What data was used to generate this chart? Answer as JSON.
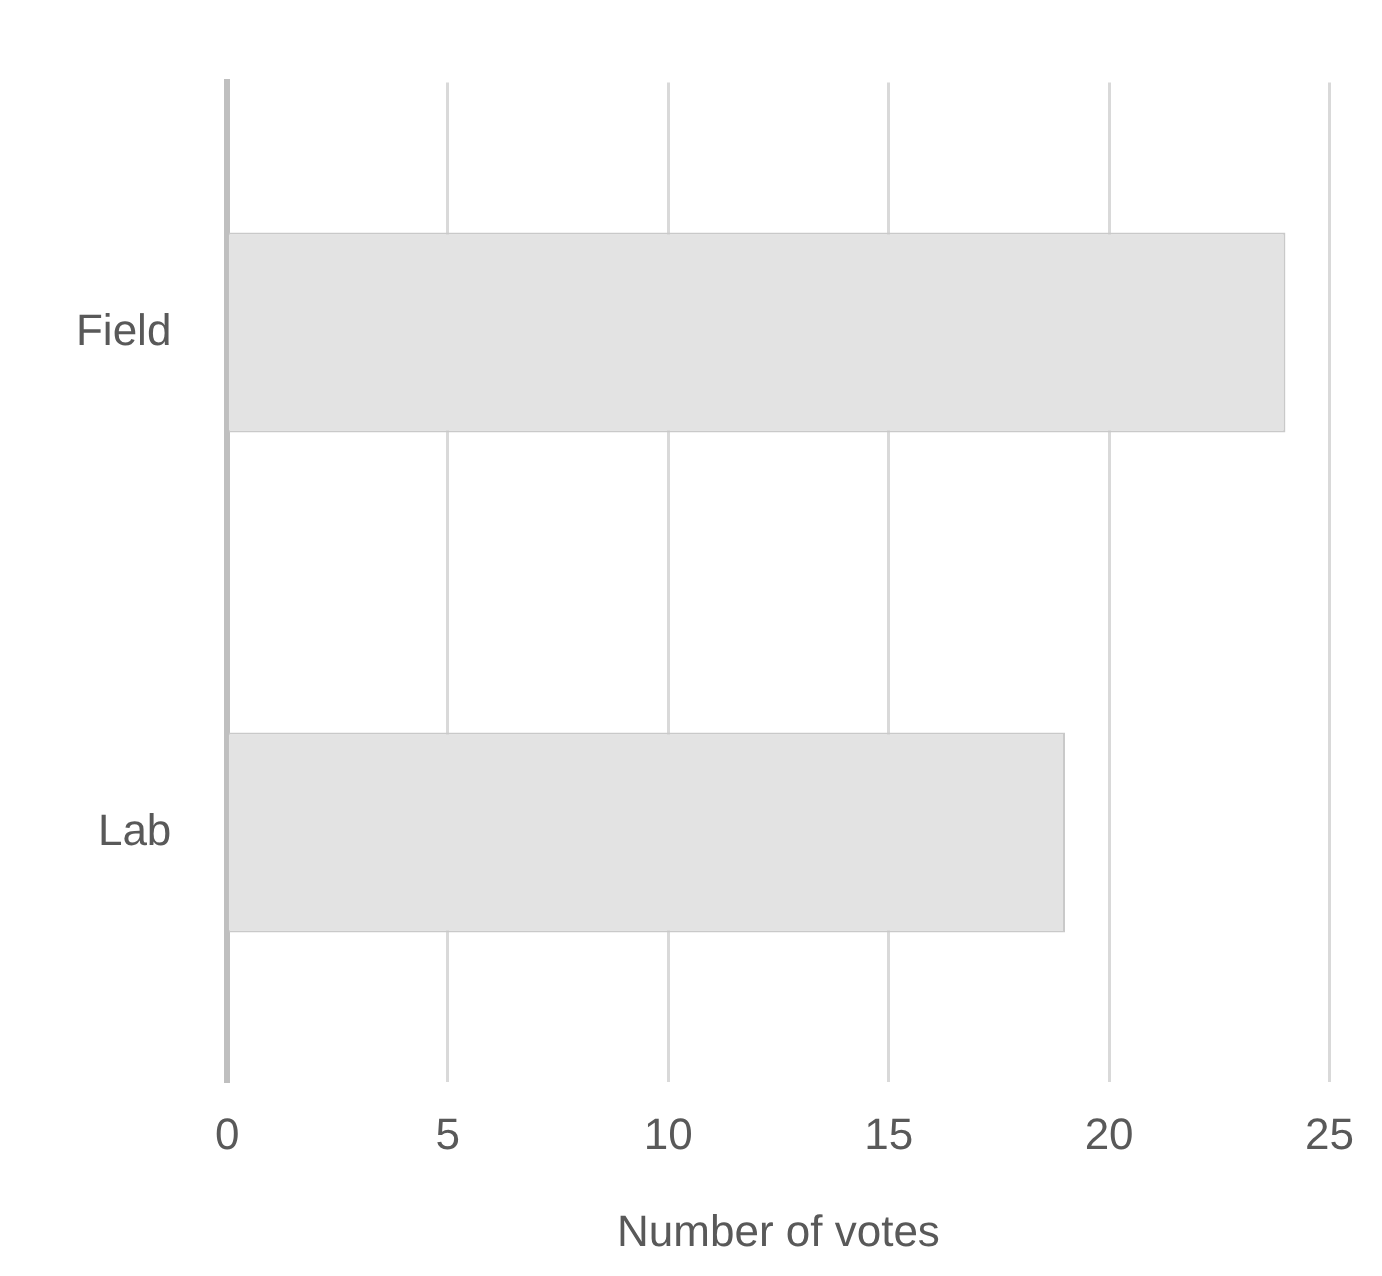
{
  "chart_data": {
    "type": "bar",
    "orientation": "horizontal",
    "categories": [
      "Field",
      "Lab"
    ],
    "values": [
      24,
      19
    ],
    "color": "#e3e3e3",
    "xlabel": "Number of votes",
    "xlim": [
      0,
      25
    ],
    "xticks": [
      0,
      5,
      10,
      15,
      20,
      25
    ],
    "grid": "x",
    "legend": false
  }
}
